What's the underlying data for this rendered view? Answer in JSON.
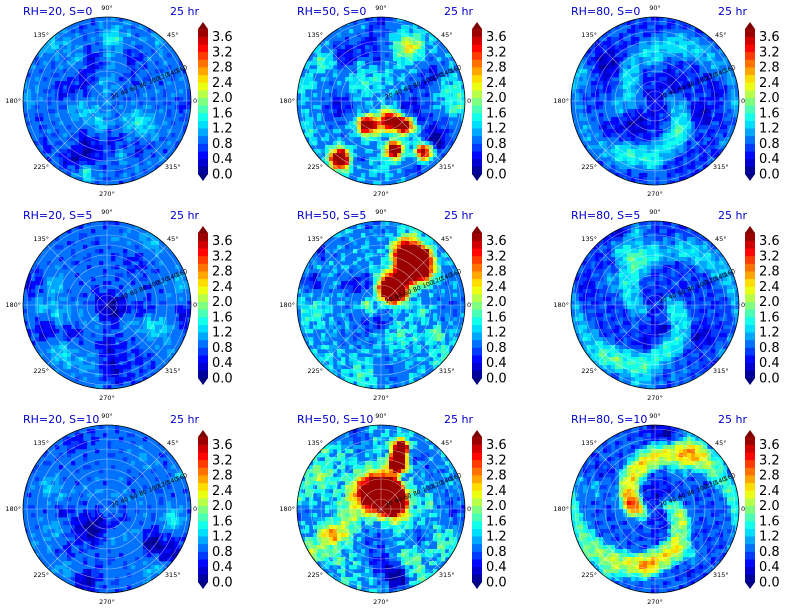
{
  "figure": {
    "description_labels": true
  },
  "colormap": {
    "name": "jet",
    "stops": [
      "#00007f",
      "#0000ff",
      "#007fff",
      "#00ffff",
      "#7fff7f",
      "#ffff00",
      "#ff7f00",
      "#ff0000",
      "#7f0000"
    ]
  },
  "chart_data": [
    {
      "type": "heatmap",
      "subtype": "polar-filled-contour",
      "title": "RH=20, S=0",
      "time_label": "25 hr",
      "angle_labels": [
        "90°",
        "45°",
        "0°",
        "315°",
        "270°",
        "225°",
        "180°",
        "135°"
      ],
      "radial_labels": [
        "20",
        "40",
        "60",
        "80",
        "100",
        "120",
        "140",
        "160"
      ],
      "colorbar_ticks": [
        "0.0",
        "0.4",
        "0.8",
        "1.2",
        "1.6",
        "2.0",
        "2.4",
        "2.8",
        "3.2",
        "3.6"
      ],
      "colorbar_range": [
        0.0,
        3.8
      ],
      "pattern": "scattered",
      "intensity": 0.9,
      "seed": 11
    },
    {
      "type": "heatmap",
      "subtype": "polar-filled-contour",
      "title": "RH=50, S=0",
      "time_label": "25 hr",
      "angle_labels": [
        "90°",
        "45°",
        "0°",
        "315°",
        "270°",
        "225°",
        "180°",
        "135°"
      ],
      "radial_labels": [
        "20",
        "40",
        "60",
        "80",
        "100",
        "120",
        "140",
        "160"
      ],
      "colorbar_ticks": [
        "0.0",
        "0.4",
        "0.8",
        "1.2",
        "1.6",
        "2.0",
        "2.4",
        "2.8",
        "3.2",
        "3.6"
      ],
      "colorbar_range": [
        0.0,
        3.8
      ],
      "pattern": "cells",
      "intensity": 1.2,
      "seed": 23
    },
    {
      "type": "heatmap",
      "subtype": "polar-filled-contour",
      "title": "RH=80, S=0",
      "time_label": "25 hr",
      "angle_labels": [
        "90°",
        "45°",
        "0°",
        "315°",
        "270°",
        "225°",
        "180°",
        "135°"
      ],
      "radial_labels": [
        "20",
        "40",
        "60",
        "80",
        "100",
        "120",
        "140",
        "160"
      ],
      "colorbar_ticks": [
        "0.0",
        "0.4",
        "0.8",
        "1.2",
        "1.6",
        "2.0",
        "2.4",
        "2.8",
        "3.2",
        "3.6"
      ],
      "colorbar_range": [
        0.0,
        3.8
      ],
      "pattern": "spiral",
      "intensity": 0.9,
      "seed": 37
    },
    {
      "type": "heatmap",
      "subtype": "polar-filled-contour",
      "title": "RH=20, S=5",
      "time_label": "25 hr",
      "angle_labels": [
        "90°",
        "45°",
        "0°",
        "315°",
        "270°",
        "225°",
        "180°",
        "135°"
      ],
      "radial_labels": [
        "20",
        "40",
        "60",
        "80",
        "100",
        "120",
        "140",
        "160"
      ],
      "colorbar_ticks": [
        "0.0",
        "0.4",
        "0.8",
        "1.2",
        "1.6",
        "2.0",
        "2.4",
        "2.8",
        "3.2",
        "3.6"
      ],
      "colorbar_range": [
        0.0,
        3.8
      ],
      "pattern": "scattered",
      "intensity": 0.85,
      "seed": 41
    },
    {
      "type": "heatmap",
      "subtype": "polar-filled-contour",
      "title": "RH=50, S=5",
      "time_label": "25 hr",
      "angle_labels": [
        "90°",
        "45°",
        "0°",
        "315°",
        "270°",
        "225°",
        "180°",
        "135°"
      ],
      "radial_labels": [
        "20",
        "40",
        "60",
        "80",
        "100",
        "120",
        "140",
        "160"
      ],
      "colorbar_ticks": [
        "0.0",
        "0.4",
        "0.8",
        "1.2",
        "1.6",
        "2.0",
        "2.4",
        "2.8",
        "3.2",
        "3.6"
      ],
      "colorbar_range": [
        0.0,
        3.8
      ],
      "pattern": "cells-ne",
      "intensity": 1.3,
      "seed": 53
    },
    {
      "type": "heatmap",
      "subtype": "polar-filled-contour",
      "title": "RH=80, S=5",
      "time_label": "25 hr",
      "angle_labels": [
        "90°",
        "45°",
        "0°",
        "315°",
        "270°",
        "225°",
        "180°",
        "135°"
      ],
      "radial_labels": [
        "20",
        "40",
        "60",
        "80",
        "100",
        "120",
        "140",
        "160"
      ],
      "colorbar_ticks": [
        "0.0",
        "0.4",
        "0.8",
        "1.2",
        "1.6",
        "2.0",
        "2.4",
        "2.8",
        "3.2",
        "3.6"
      ],
      "colorbar_range": [
        0.0,
        3.8
      ],
      "pattern": "spiral",
      "intensity": 1.0,
      "seed": 67
    },
    {
      "type": "heatmap",
      "subtype": "polar-filled-contour",
      "title": "RH=20, S=10",
      "time_label": "25 hr",
      "angle_labels": [
        "90°",
        "45°",
        "0°",
        "315°",
        "270°",
        "225°",
        "180°",
        "135°"
      ],
      "radial_labels": [
        "20",
        "40",
        "60",
        "80",
        "100",
        "120",
        "140",
        "160"
      ],
      "colorbar_ticks": [
        "0.0",
        "0.4",
        "0.8",
        "1.2",
        "1.6",
        "2.0",
        "2.4",
        "2.8",
        "3.2",
        "3.6"
      ],
      "colorbar_range": [
        0.0,
        3.8
      ],
      "pattern": "scattered",
      "intensity": 0.85,
      "seed": 71
    },
    {
      "type": "heatmap",
      "subtype": "polar-filled-contour",
      "title": "RH=50, S=10",
      "time_label": "25 hr",
      "angle_labels": [
        "90°",
        "45°",
        "0°",
        "315°",
        "270°",
        "225°",
        "180°",
        "135°"
      ],
      "radial_labels": [
        "20",
        "40",
        "60",
        "80",
        "100",
        "120",
        "140",
        "160"
      ],
      "colorbar_ticks": [
        "0.0",
        "0.4",
        "0.8",
        "1.2",
        "1.6",
        "2.0",
        "2.4",
        "2.8",
        "3.2",
        "3.6"
      ],
      "colorbar_range": [
        0.0,
        3.8
      ],
      "pattern": "cells-strong",
      "intensity": 1.4,
      "seed": 83
    },
    {
      "type": "heatmap",
      "subtype": "polar-filled-contour",
      "title": "RH=80, S=10",
      "time_label": "25 hr",
      "angle_labels": [
        "90°",
        "45°",
        "0°",
        "315°",
        "270°",
        "225°",
        "180°",
        "135°"
      ],
      "radial_labels": [
        "20",
        "40",
        "60",
        "80",
        "100",
        "120",
        "140",
        "160"
      ],
      "colorbar_ticks": [
        "0.0",
        "0.4",
        "0.8",
        "1.2",
        "1.6",
        "2.0",
        "2.4",
        "2.8",
        "3.2",
        "3.6"
      ],
      "colorbar_range": [
        0.0,
        3.8
      ],
      "pattern": "spiral-strong",
      "intensity": 1.15,
      "seed": 97
    }
  ]
}
